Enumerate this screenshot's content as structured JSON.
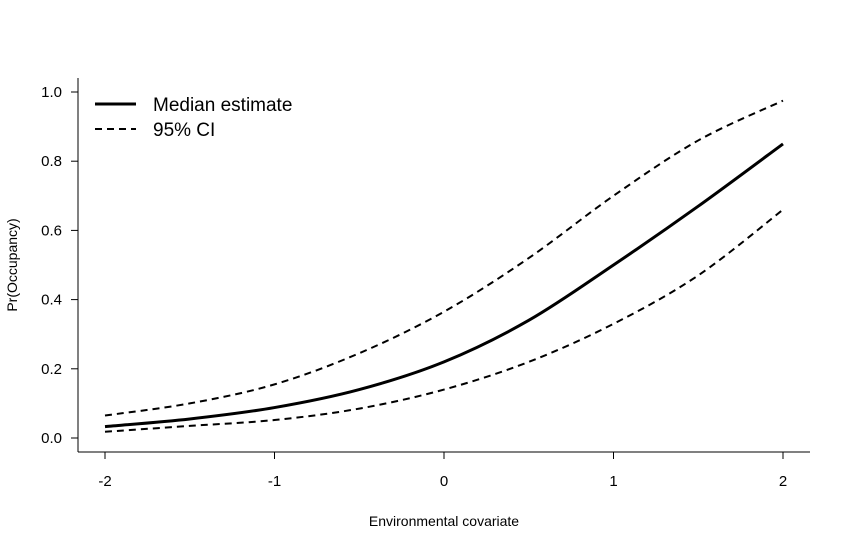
{
  "chart_data": {
    "type": "line",
    "title": "",
    "xlabel": "Environmental covariate",
    "ylabel": "Pr(Occupancy)",
    "xlim": [
      -2,
      2
    ],
    "ylim": [
      0,
      1
    ],
    "x_ticks": [
      -2,
      -1,
      0,
      1,
      2
    ],
    "x_tick_labels": [
      "-2",
      "-1",
      "0",
      "1",
      "2"
    ],
    "y_ticks": [
      0,
      0.2,
      0.4,
      0.6,
      0.8,
      1.0
    ],
    "y_tick_labels": [
      "0.0",
      "0.2",
      "0.4",
      "0.6",
      "0.8",
      "1.0"
    ],
    "grid": false,
    "legend_position": "top-left",
    "x": [
      -2.0,
      -1.5,
      -1.0,
      -0.5,
      0.0,
      0.5,
      1.0,
      1.5,
      2.0
    ],
    "series": [
      {
        "name": "Median estimate",
        "style": "solid",
        "values": [
          0.033,
          0.055,
          0.088,
          0.14,
          0.22,
          0.34,
          0.5,
          0.67,
          0.85
        ]
      },
      {
        "name": "95% CI",
        "style": "dashed",
        "values": [
          0.065,
          0.1,
          0.155,
          0.245,
          0.365,
          0.52,
          0.7,
          0.86,
          0.975
        ]
      },
      {
        "name": "",
        "style": "dashed",
        "values": [
          0.018,
          0.035,
          0.052,
          0.085,
          0.14,
          0.22,
          0.33,
          0.47,
          0.66
        ]
      }
    ],
    "colors": {
      "line": "#000000",
      "axis": "#000000",
      "background": "#ffffff"
    }
  }
}
